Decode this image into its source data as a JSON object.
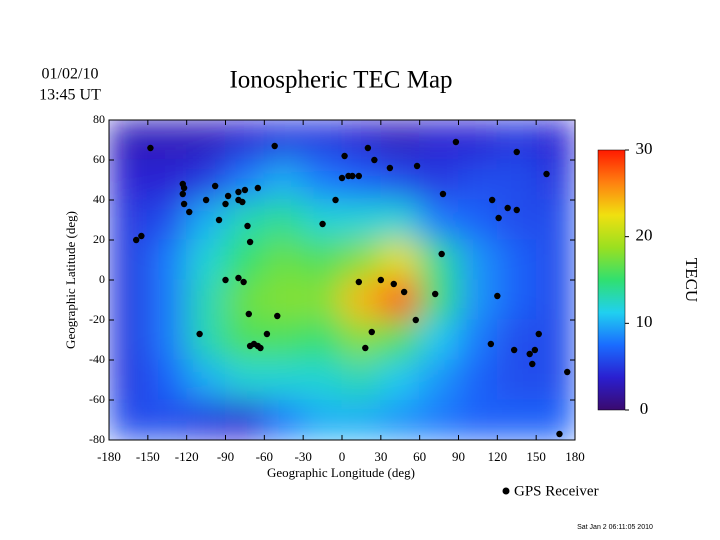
{
  "chart_data": {
    "type": "map",
    "title": "Ionospheric TEC Map",
    "date": "01/02/10",
    "time": "13:45 UT",
    "xlabel": "Geographic Longitude (deg)",
    "ylabel": "Geographic Latitude (deg)",
    "xlim": [
      -180,
      180
    ],
    "ylim": [
      -80,
      80
    ],
    "xticks": [
      -180,
      -150,
      -120,
      -90,
      -60,
      -30,
      0,
      30,
      60,
      90,
      120,
      150,
      180
    ],
    "yticks": [
      -80,
      -60,
      -40,
      -20,
      0,
      20,
      40,
      60,
      80
    ],
    "colormap": [
      "#3a0a6e",
      "#2a1fd0",
      "#1a6cff",
      "#20d0f0",
      "#30e070",
      "#9ae020",
      "#f0e010",
      "#ff8010",
      "#ff1a00"
    ],
    "grid": {
      "lon": [
        -165,
        -135,
        -105,
        -75,
        -45,
        -15,
        15,
        45,
        75,
        105,
        135,
        165
      ],
      "lat": [
        70,
        50,
        30,
        10,
        -10,
        -30,
        -50,
        -70
      ],
      "values": [
        [
          3,
          3,
          3,
          4,
          5,
          5,
          4,
          3,
          4,
          4,
          5,
          4
        ],
        [
          4,
          4,
          5,
          8,
          10,
          8,
          7,
          6,
          5,
          6,
          6,
          5
        ],
        [
          5,
          6,
          10,
          13,
          14,
          12,
          12,
          12,
          8,
          7,
          6,
          6
        ],
        [
          5,
          8,
          12,
          15,
          17,
          16,
          18,
          22,
          14,
          9,
          7,
          6
        ],
        [
          5,
          8,
          13,
          17,
          18,
          18,
          24,
          28,
          15,
          9,
          7,
          6
        ],
        [
          5,
          8,
          13,
          16,
          16,
          15,
          18,
          16,
          11,
          8,
          6,
          6
        ],
        [
          5,
          7,
          10,
          12,
          12,
          12,
          13,
          11,
          9,
          7,
          6,
          6
        ],
        [
          6,
          6,
          5,
          4,
          8,
          10,
          10,
          9,
          8,
          7,
          7,
          7
        ]
      ]
    },
    "colorbar": {
      "label": "TECU",
      "lim": [
        0,
        30
      ],
      "ticks": [
        0,
        10,
        20,
        30
      ]
    },
    "receivers": {
      "name": "GPS Receiver",
      "color": "#000000",
      "lon": [
        -148,
        -123,
        -122,
        -123,
        -122,
        -118,
        -105,
        -98,
        -90,
        -95,
        -88,
        -80,
        -77,
        -80,
        -75,
        -65,
        -52,
        -73,
        -71,
        -155,
        -159,
        -110,
        -90,
        -80,
        -76,
        -72,
        -71,
        -68,
        -65,
        -63,
        -58,
        -50,
        -15,
        -5,
        0,
        2,
        5,
        8,
        13,
        20,
        25,
        37,
        58,
        78,
        88,
        13,
        30,
        40,
        23,
        18,
        48,
        57,
        72,
        77,
        116,
        121,
        128,
        135,
        135,
        158,
        120,
        115,
        133,
        145,
        149,
        152,
        147,
        168,
        174
      ],
      "lat": [
        66,
        48,
        46,
        43,
        38,
        34,
        40,
        47,
        38,
        30,
        42,
        40,
        39,
        44,
        45,
        46,
        67,
        27,
        19,
        22,
        20,
        -27,
        0,
        1,
        -1,
        -17,
        -33,
        -32,
        -33,
        -34,
        -27,
        -18,
        28,
        40,
        51,
        62,
        52,
        52,
        52,
        66,
        60,
        56,
        57,
        43,
        69,
        -1,
        0,
        -2,
        -26,
        -34,
        -6,
        -20,
        -7,
        13,
        40,
        31,
        36,
        35,
        64,
        53,
        -8,
        -32,
        -35,
        -37,
        -35,
        -27,
        -42,
        -77,
        -46
      ]
    },
    "footer": "Sat Jan  2 06:11:05 2010"
  }
}
